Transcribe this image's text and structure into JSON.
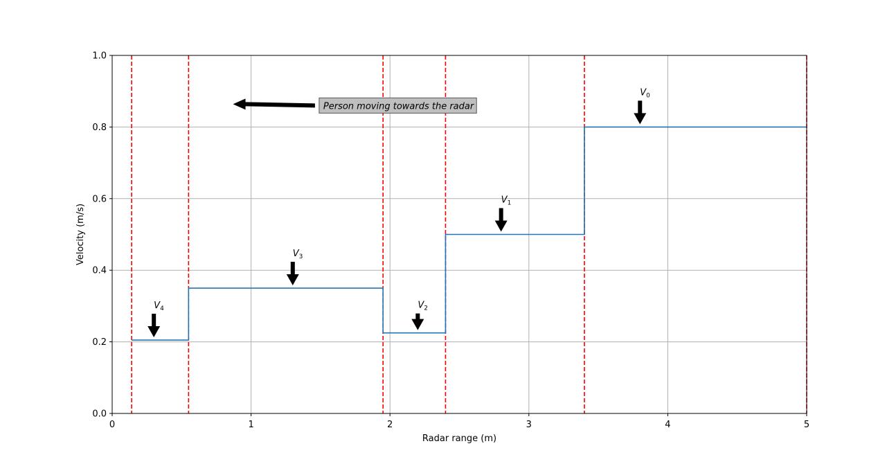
{
  "chart_data": {
    "type": "line",
    "step": "post",
    "xlabel": "Radar range (m)",
    "ylabel": "Velocity (m/s)",
    "xlim": [
      0,
      5
    ],
    "ylim": [
      0,
      1.0
    ],
    "xticks": [
      "0",
      "1",
      "2",
      "3",
      "4",
      "5"
    ],
    "yticks": [
      "0.0",
      "0.2",
      "0.4",
      "0.6",
      "0.8",
      "1.0"
    ],
    "grid": true,
    "series": [
      {
        "color": "#1f77b4",
        "x": [
          0.14,
          0.55,
          1.95,
          2.4,
          3.4,
          5.0
        ],
        "y": [
          0.205,
          0.35,
          0.225,
          0.5,
          0.8,
          0.8
        ]
      }
    ],
    "vlines": {
      "color": "#ff0000",
      "style": "dashed",
      "x": [
        0.14,
        0.55,
        1.95,
        2.4,
        3.4,
        5.0
      ]
    },
    "annotations": [
      {
        "main": "V",
        "sub": "4",
        "x": 0.3,
        "y": 0.205
      },
      {
        "main": "V",
        "sub": "3",
        "x": 1.3,
        "y": 0.35
      },
      {
        "main": "V",
        "sub": "2",
        "x": 2.2,
        "y": 0.225
      },
      {
        "main": "V",
        "sub": "1",
        "x": 2.8,
        "y": 0.5
      },
      {
        "main": "V",
        "sub": "0",
        "x": 3.8,
        "y": 0.8
      }
    ],
    "callout": {
      "text": "Person moving towards the radar",
      "x": 1.5,
      "y": 0.86,
      "arrow_to_x": 0.88,
      "arrow_to_y": 0.86
    }
  }
}
